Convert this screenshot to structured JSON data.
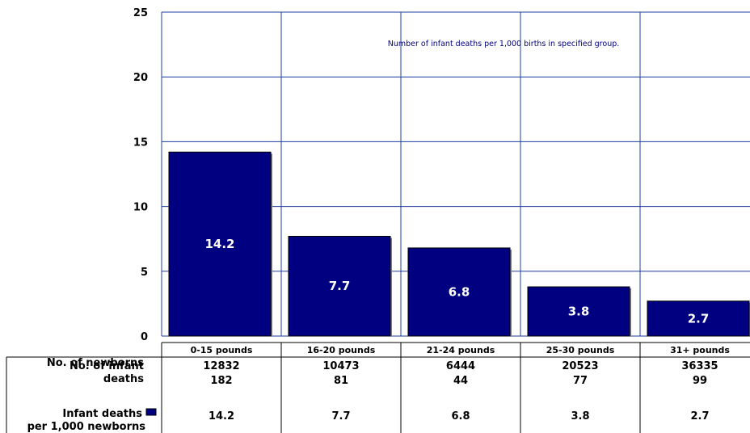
{
  "chart_data": {
    "type": "bar",
    "categories": [
      "0-15 pounds",
      "16-20 pounds",
      "21-24 pounds",
      "25-30 pounds",
      "31+ pounds"
    ],
    "series": [
      {
        "name": "Infant deaths per 1,000 newborns",
        "values": [
          14.2,
          7.7,
          6.8,
          3.8,
          2.7
        ]
      }
    ],
    "data_labels": [
      "14.2",
      "7.7",
      "6.8",
      "3.8",
      "2.7"
    ],
    "ylim": [
      0,
      25
    ],
    "yticks": [
      "0",
      "5",
      "10",
      "15",
      "20",
      "25"
    ],
    "annotation": "Number of infant deaths per 1,000 births in specified group.",
    "grid": true,
    "bar_color": "#000080",
    "grid_color": "#1e3ca0",
    "data_table": {
      "rows": [
        {
          "header": [
            "No. of newborns"
          ],
          "values": [
            "12832",
            "10473",
            "6444",
            "20523",
            "36335"
          ]
        },
        {
          "header": [
            "No. of infant",
            "deaths"
          ],
          "values": [
            "182",
            "81",
            "44",
            "77",
            "99"
          ]
        },
        {
          "header": [
            "Infant deaths",
            "per 1,000 newborns"
          ],
          "values": [
            "14.2",
            "7.7",
            "6.8",
            "3.8",
            "2.7"
          ],
          "legend_key": true
        }
      ]
    }
  }
}
